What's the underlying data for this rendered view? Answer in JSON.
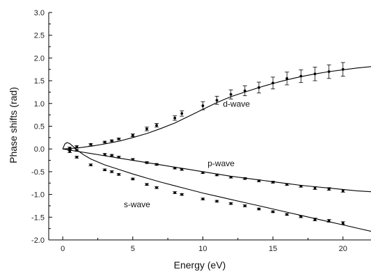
{
  "chart_data": {
    "type": "scatter",
    "title": "",
    "xlabel": "Energy (eV)",
    "ylabel": "Phase shifts (rad)",
    "xlim": [
      -1,
      22
    ],
    "ylim": [
      -2.0,
      3.0
    ],
    "xticks": [
      0,
      5,
      10,
      15,
      20
    ],
    "yticks": [
      -2.0,
      -1.5,
      -1.0,
      -0.5,
      0.0,
      0.5,
      1.0,
      1.5,
      2.0,
      2.5,
      3.0
    ],
    "grid": false,
    "legend": "none",
    "series": [
      {
        "label": "d-wave",
        "annotation_at": [
          12.4,
          0.93
        ],
        "points": [
          {
            "x": 0.5,
            "y": 0.02,
            "err": 0.02
          },
          {
            "x": 1.0,
            "y": 0.05,
            "err": 0.02
          },
          {
            "x": 2.0,
            "y": 0.1,
            "err": 0.02
          },
          {
            "x": 3.0,
            "y": 0.15,
            "err": 0.02
          },
          {
            "x": 3.5,
            "y": 0.18,
            "err": 0.02
          },
          {
            "x": 4.0,
            "y": 0.22,
            "err": 0.02
          },
          {
            "x": 5.0,
            "y": 0.3,
            "err": 0.03
          },
          {
            "x": 6.0,
            "y": 0.44,
            "err": 0.04
          },
          {
            "x": 6.7,
            "y": 0.52,
            "err": 0.04
          },
          {
            "x": 8.0,
            "y": 0.68,
            "err": 0.05
          },
          {
            "x": 8.5,
            "y": 0.78,
            "err": 0.06
          },
          {
            "x": 10.0,
            "y": 0.95,
            "err": 0.09
          },
          {
            "x": 11.0,
            "y": 1.07,
            "err": 0.09
          },
          {
            "x": 12.0,
            "y": 1.2,
            "err": 0.1
          },
          {
            "x": 13.0,
            "y": 1.28,
            "err": 0.11
          },
          {
            "x": 14.0,
            "y": 1.35,
            "err": 0.12
          },
          {
            "x": 15.0,
            "y": 1.45,
            "err": 0.13
          },
          {
            "x": 16.0,
            "y": 1.55,
            "err": 0.14
          },
          {
            "x": 17.0,
            "y": 1.6,
            "err": 0.14
          },
          {
            "x": 18.0,
            "y": 1.65,
            "err": 0.15
          },
          {
            "x": 19.0,
            "y": 1.7,
            "err": 0.15
          },
          {
            "x": 20.0,
            "y": 1.75,
            "err": 0.15
          }
        ],
        "curve": [
          [
            0.0,
            0.0
          ],
          [
            1.0,
            0.02
          ],
          [
            2.0,
            0.06
          ],
          [
            3.0,
            0.11
          ],
          [
            4.0,
            0.17
          ],
          [
            5.0,
            0.25
          ],
          [
            6.0,
            0.34
          ],
          [
            7.0,
            0.45
          ],
          [
            8.0,
            0.57
          ],
          [
            9.0,
            0.72
          ],
          [
            10.0,
            0.87
          ],
          [
            11.0,
            1.02
          ],
          [
            12.0,
            1.15
          ],
          [
            13.0,
            1.25
          ],
          [
            14.0,
            1.35
          ],
          [
            15.0,
            1.44
          ],
          [
            16.0,
            1.52
          ],
          [
            17.0,
            1.59
          ],
          [
            18.0,
            1.65
          ],
          [
            19.0,
            1.7
          ],
          [
            20.0,
            1.74
          ],
          [
            21.0,
            1.78
          ],
          [
            22.0,
            1.81
          ]
        ]
      },
      {
        "label": "p-wave",
        "annotation_at": [
          11.3,
          -0.38
        ],
        "points": [
          {
            "x": 0.5,
            "y": -0.01,
            "err": 0.02
          },
          {
            "x": 1.0,
            "y": -0.03,
            "err": 0.02
          },
          {
            "x": 3.0,
            "y": -0.12,
            "err": 0.02
          },
          {
            "x": 3.5,
            "y": -0.14,
            "err": 0.02
          },
          {
            "x": 4.0,
            "y": -0.18,
            "err": 0.02
          },
          {
            "x": 5.0,
            "y": -0.23,
            "err": 0.02
          },
          {
            "x": 6.0,
            "y": -0.3,
            "err": 0.02
          },
          {
            "x": 6.7,
            "y": -0.34,
            "err": 0.02
          },
          {
            "x": 8.0,
            "y": -0.42,
            "err": 0.02
          },
          {
            "x": 8.5,
            "y": -0.45,
            "err": 0.02
          },
          {
            "x": 10.0,
            "y": -0.52,
            "err": 0.02
          },
          {
            "x": 11.0,
            "y": -0.57,
            "err": 0.02
          },
          {
            "x": 12.0,
            "y": -0.62,
            "err": 0.02
          },
          {
            "x": 13.0,
            "y": -0.65,
            "err": 0.02
          },
          {
            "x": 14.0,
            "y": -0.7,
            "err": 0.02
          },
          {
            "x": 15.0,
            "y": -0.73,
            "err": 0.02
          },
          {
            "x": 16.0,
            "y": -0.78,
            "err": 0.02
          },
          {
            "x": 17.0,
            "y": -0.82,
            "err": 0.02
          },
          {
            "x": 18.0,
            "y": -0.86,
            "err": 0.03
          },
          {
            "x": 19.0,
            "y": -0.88,
            "err": 0.03
          },
          {
            "x": 20.0,
            "y": -0.92,
            "err": 0.03
          }
        ],
        "curve": [
          [
            0.0,
            0.0
          ],
          [
            1.0,
            -0.05
          ],
          [
            2.0,
            -0.1
          ],
          [
            3.0,
            -0.15
          ],
          [
            4.0,
            -0.2
          ],
          [
            5.0,
            -0.25
          ],
          [
            6.0,
            -0.3
          ],
          [
            7.0,
            -0.35
          ],
          [
            8.0,
            -0.4
          ],
          [
            9.0,
            -0.45
          ],
          [
            10.0,
            -0.5
          ],
          [
            11.0,
            -0.55
          ],
          [
            12.0,
            -0.6
          ],
          [
            13.0,
            -0.64
          ],
          [
            14.0,
            -0.68
          ],
          [
            15.0,
            -0.72
          ],
          [
            16.0,
            -0.76
          ],
          [
            17.0,
            -0.8
          ],
          [
            18.0,
            -0.83
          ],
          [
            19.0,
            -0.86
          ],
          [
            20.0,
            -0.89
          ],
          [
            21.0,
            -0.92
          ],
          [
            22.0,
            -0.94
          ]
        ]
      },
      {
        "label": "s-wave",
        "annotation_at": [
          5.3,
          -1.28
        ],
        "points": [
          {
            "x": 0.5,
            "y": -0.05,
            "err": 0.03
          },
          {
            "x": 1.0,
            "y": -0.18,
            "err": 0.02
          },
          {
            "x": 2.0,
            "y": -0.35,
            "err": 0.02
          },
          {
            "x": 3.0,
            "y": -0.46,
            "err": 0.02
          },
          {
            "x": 3.5,
            "y": -0.5,
            "err": 0.02
          },
          {
            "x": 4.0,
            "y": -0.56,
            "err": 0.02
          },
          {
            "x": 5.0,
            "y": -0.66,
            "err": 0.02
          },
          {
            "x": 6.0,
            "y": -0.78,
            "err": 0.02
          },
          {
            "x": 6.7,
            "y": -0.85,
            "err": 0.02
          },
          {
            "x": 8.0,
            "y": -0.96,
            "err": 0.02
          },
          {
            "x": 8.5,
            "y": -1.0,
            "err": 0.02
          },
          {
            "x": 10.0,
            "y": -1.1,
            "err": 0.02
          },
          {
            "x": 11.0,
            "y": -1.15,
            "err": 0.02
          },
          {
            "x": 12.0,
            "y": -1.2,
            "err": 0.02
          },
          {
            "x": 13.0,
            "y": -1.25,
            "err": 0.02
          },
          {
            "x": 14.0,
            "y": -1.32,
            "err": 0.02
          },
          {
            "x": 15.0,
            "y": -1.38,
            "err": 0.02
          },
          {
            "x": 16.0,
            "y": -1.44,
            "err": 0.02
          },
          {
            "x": 17.0,
            "y": -1.49,
            "err": 0.02
          },
          {
            "x": 18.0,
            "y": -1.55,
            "err": 0.03
          },
          {
            "x": 19.0,
            "y": -1.58,
            "err": 0.03
          },
          {
            "x": 20.0,
            "y": -1.63,
            "err": 0.03
          }
        ],
        "curve": [
          [
            0.0,
            0.0
          ],
          [
            0.15,
            0.11
          ],
          [
            0.3,
            0.14
          ],
          [
            0.5,
            0.12
          ],
          [
            0.8,
            0.04
          ],
          [
            1.0,
            -0.02
          ],
          [
            1.5,
            -0.13
          ],
          [
            2.0,
            -0.22
          ],
          [
            3.0,
            -0.35
          ],
          [
            4.0,
            -0.45
          ],
          [
            5.0,
            -0.55
          ],
          [
            6.0,
            -0.64
          ],
          [
            7.0,
            -0.73
          ],
          [
            8.0,
            -0.81
          ],
          [
            9.0,
            -0.89
          ],
          [
            10.0,
            -0.97
          ],
          [
            11.0,
            -1.04
          ],
          [
            12.0,
            -1.11
          ],
          [
            13.0,
            -1.18
          ],
          [
            14.0,
            -1.25
          ],
          [
            15.0,
            -1.32
          ],
          [
            16.0,
            -1.39
          ],
          [
            17.0,
            -1.46
          ],
          [
            18.0,
            -1.53
          ],
          [
            19.0,
            -1.6
          ],
          [
            20.0,
            -1.67
          ],
          [
            21.0,
            -1.74
          ],
          [
            22.0,
            -1.81
          ]
        ]
      }
    ]
  }
}
